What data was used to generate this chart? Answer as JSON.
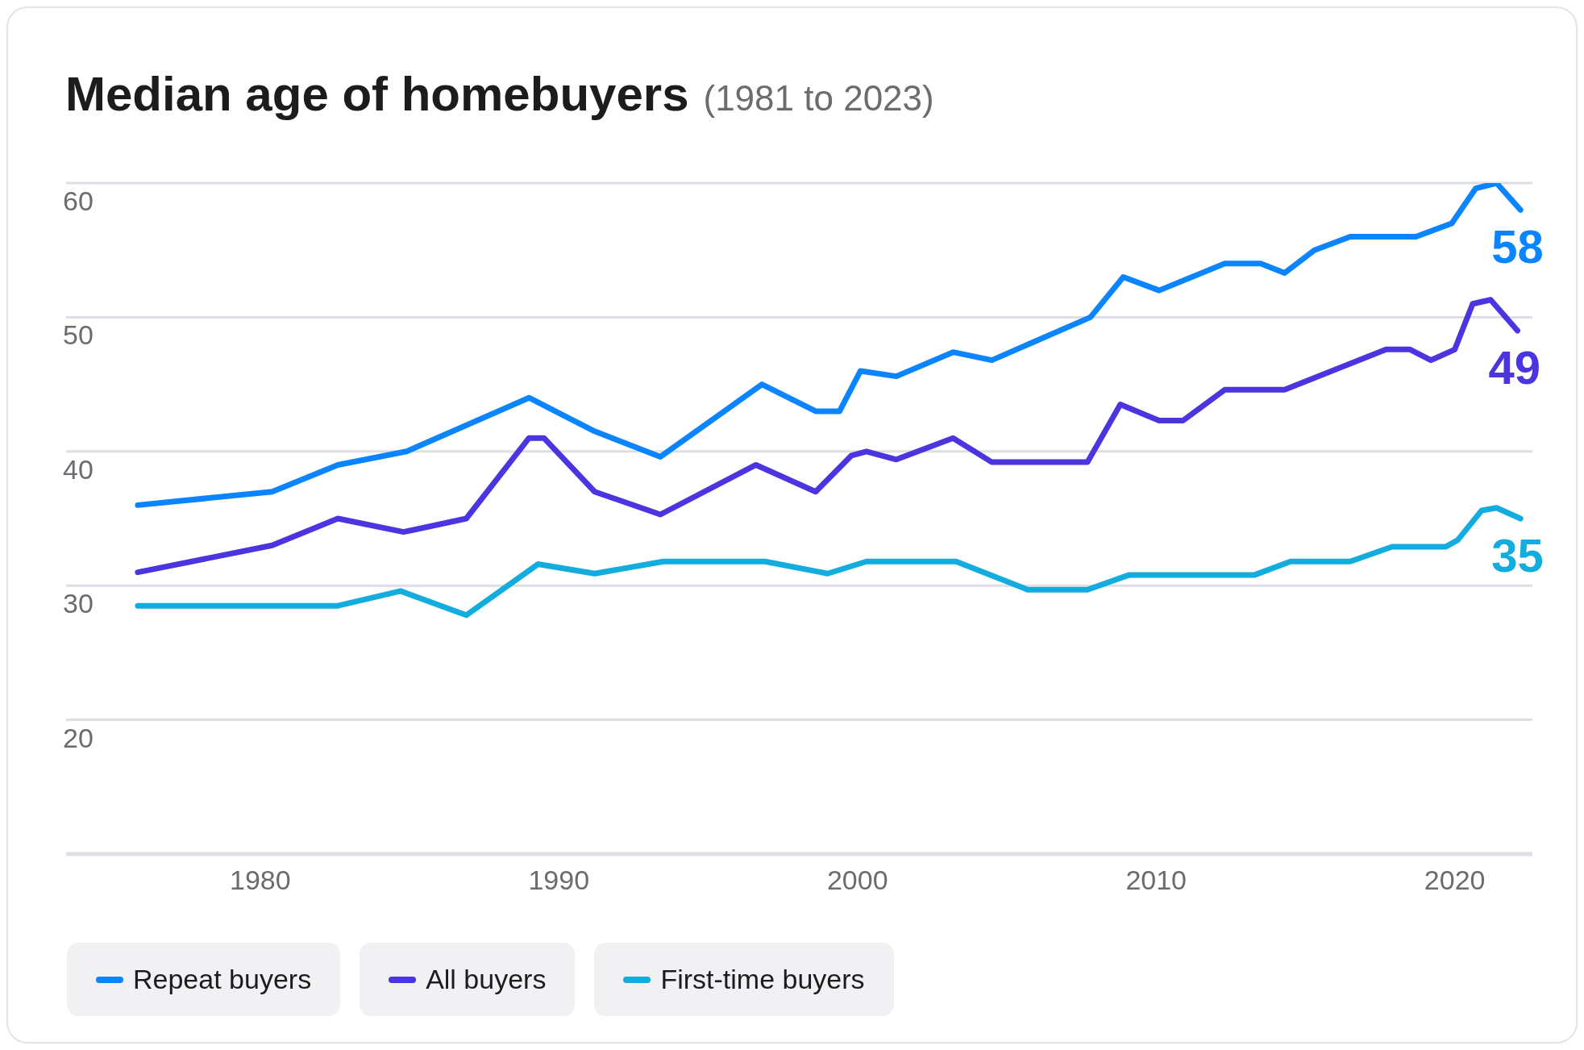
{
  "chart_data": {
    "type": "line",
    "title": "Median age of homebuyers",
    "subtitle": "(1981 to 2023)",
    "xlim": [
      1973.5,
      2022.6
    ],
    "xticks": [
      1980,
      1990,
      2000,
      2010,
      2020
    ],
    "ylim": [
      10,
      60
    ],
    "yticks": [
      20,
      30,
      40,
      50,
      60
    ],
    "grid": "y",
    "legend": "bottom",
    "marker": "none",
    "line_style": "solid",
    "series": [
      {
        "name": "Repeat buyers",
        "color": "#0a84ff",
        "x": [
          1975.9,
          1980.4,
          1982.6,
          1984.9,
          1989,
          1991.2,
          1993.4,
          1996.8,
          1998.6,
          1999.4,
          2000.1,
          2001.3,
          2003.2,
          2004.5,
          2007.8,
          2008.9,
          2010.1,
          2012.3,
          2013.5,
          2014.3,
          2015.3,
          2016.5,
          2018.7,
          2019.9,
          2020.7,
          2021.4,
          2022.2
        ],
        "values": [
          36,
          37,
          39,
          40,
          44,
          41.5,
          39.6,
          45,
          43,
          43,
          46,
          45.6,
          47.4,
          46.8,
          50,
          53,
          52,
          54,
          54,
          53.3,
          55,
          56,
          56,
          57,
          59.6,
          60,
          58
        ],
        "value_labels": [
          null,
          null,
          null,
          null,
          null,
          null,
          null,
          null,
          null,
          null,
          null,
          null,
          null,
          null,
          null,
          null,
          null,
          null,
          null,
          null,
          null,
          null,
          null,
          null,
          null,
          null,
          "58"
        ]
      },
      {
        "name": "All buyers",
        "color": "#4a35e0",
        "x": [
          1975.9,
          1980.4,
          1982.6,
          1984.8,
          1986.9,
          1989,
          1989.5,
          1991.2,
          1993.4,
          1996.6,
          1998.6,
          1999.8,
          2000.3,
          2001.3,
          2003.2,
          2004.5,
          2007.7,
          2008.8,
          2010.1,
          2010.9,
          2012.3,
          2014.3,
          2017.7,
          2018.5,
          2019.2,
          2020,
          2020.6,
          2021.2,
          2022.1
        ],
        "values": [
          31,
          33,
          35,
          34,
          35,
          41,
          41,
          37,
          35.3,
          39,
          37,
          39.7,
          40,
          39.4,
          41,
          39.2,
          39.2,
          43.5,
          42.3,
          42.3,
          44.6,
          44.6,
          47.6,
          47.6,
          46.8,
          47.6,
          51,
          51.3,
          49
        ],
        "value_labels": [
          null,
          null,
          null,
          null,
          null,
          null,
          null,
          null,
          null,
          null,
          null,
          null,
          null,
          null,
          null,
          null,
          null,
          null,
          null,
          null,
          null,
          null,
          null,
          null,
          null,
          null,
          null,
          null,
          "49"
        ]
      },
      {
        "name": "First-time buyers",
        "color": "#13acdf",
        "x": [
          1975.9,
          1982.6,
          1984.7,
          1986.9,
          1989.3,
          1991.2,
          1993.5,
          1996.9,
          1999,
          2000.3,
          2003.3,
          2005.7,
          2007.7,
          2009.1,
          2013.3,
          2014.5,
          2016.5,
          2017.9,
          2019.7,
          2020.1,
          2020.9,
          2021.4,
          2022.2
        ],
        "values": [
          28.5,
          28.5,
          29.6,
          27.8,
          31.6,
          30.9,
          31.8,
          31.8,
          30.9,
          31.8,
          31.8,
          29.7,
          29.7,
          30.8,
          30.8,
          31.8,
          31.8,
          32.9,
          32.9,
          33.4,
          35.6,
          35.8,
          35
        ],
        "value_labels": [
          null,
          null,
          null,
          null,
          null,
          null,
          null,
          null,
          null,
          null,
          null,
          null,
          null,
          null,
          null,
          null,
          null,
          null,
          null,
          null,
          null,
          null,
          "35"
        ]
      }
    ]
  }
}
